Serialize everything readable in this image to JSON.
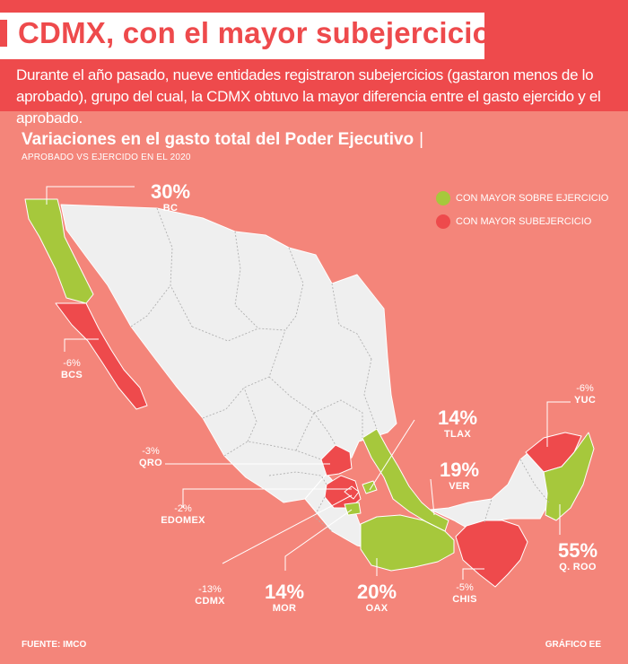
{
  "header": {
    "title": "CDMX, con el mayor subejercicio",
    "intro": "Durante el año pasado, nueve entidades registraron subejercicios (gastaron menos de lo aprobado), grupo del cual, la CDMX obtuvo la mayor diferencia entre el gasto ejercido y el aprobado."
  },
  "chart": {
    "subtitle": "Variaciones en el gasto total del Poder Ejecutivo",
    "subtitle_pipe": "|",
    "caption": "APROBADO VS EJERCIDO EN EL 2020"
  },
  "legend": {
    "items": [
      {
        "label": "CON MAYOR SOBRE EJERCICIO",
        "color": "#a6c83c"
      },
      {
        "label": "CON MAYOR SUBEJERCICIO",
        "color": "#ee4a4c"
      }
    ]
  },
  "colors": {
    "background": "#f4857a",
    "header": "#ee4a4c",
    "land": "#efefef",
    "overspend": "#a6c83c",
    "underspend": "#ee4a4c"
  },
  "states": {
    "bc": {
      "state": "BC",
      "value": "30%",
      "category": "overspend"
    },
    "bcs": {
      "state": "BCS",
      "value": "-6%",
      "category": "underspend"
    },
    "qro": {
      "state": "QRO",
      "value": "-3%",
      "category": "underspend"
    },
    "edomex": {
      "state": "EDOMEX",
      "value": "-2%",
      "category": "underspend"
    },
    "cdmx": {
      "state": "CDMX",
      "value": "-13%",
      "category": "underspend"
    },
    "mor": {
      "state": "MOR",
      "value": "14%",
      "category": "overspend"
    },
    "oax": {
      "state": "OAX",
      "value": "20%",
      "category": "overspend"
    },
    "chis": {
      "state": "CHIS",
      "value": "-5%",
      "category": "underspend"
    },
    "qroo": {
      "state": "Q. ROO",
      "value": "55%",
      "category": "overspend"
    },
    "yuc": {
      "state": "YUC",
      "value": "-6%",
      "category": "underspend"
    },
    "ver": {
      "state": "VER",
      "value": "19%",
      "category": "overspend"
    },
    "tlax": {
      "state": "TLAX",
      "value": "14%",
      "category": "overspend"
    }
  },
  "footer": {
    "source": "FUENTE: IMCO",
    "credit": "GRÁFICO EE"
  }
}
